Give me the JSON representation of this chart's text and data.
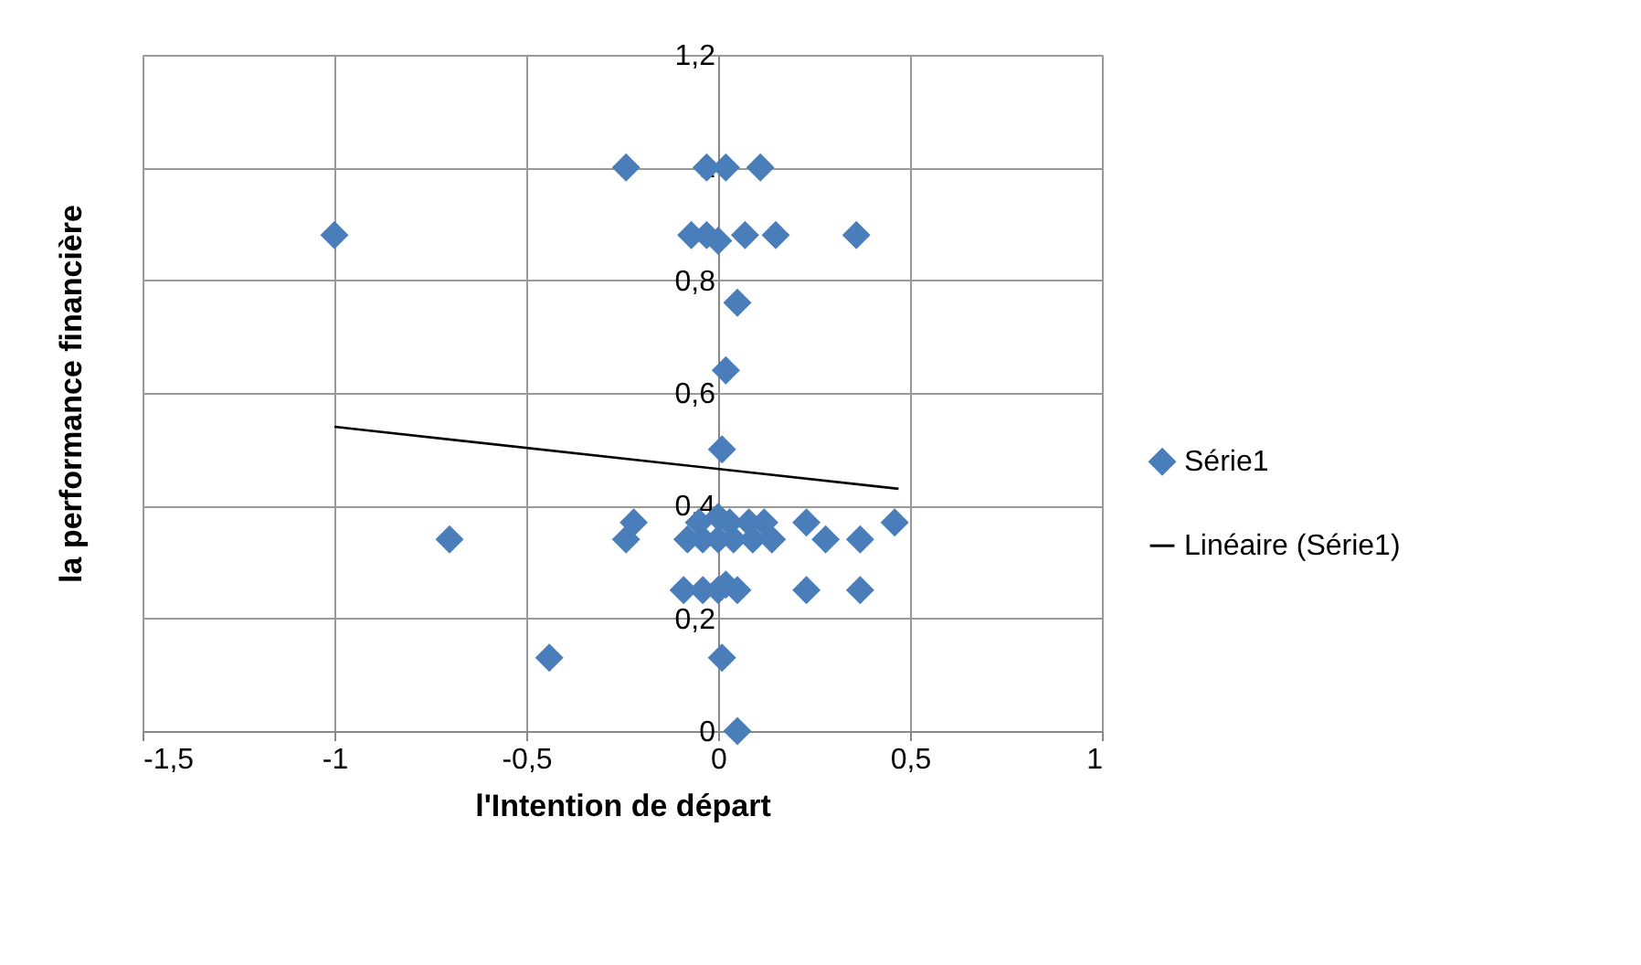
{
  "chart_data": {
    "type": "scatter",
    "xlabel": "l'Intention de départ",
    "ylabel": "la performance financière",
    "xlim": [
      -1.5,
      1
    ],
    "ylim": [
      0,
      1.2
    ],
    "xticks": [
      {
        "value": -1.5,
        "label": "-1,5"
      },
      -1,
      {
        "value": -0.5,
        "label": "-0,5"
      },
      0,
      {
        "value": 0.5,
        "label": "0,5"
      },
      1
    ],
    "yticks": [
      0,
      {
        "value": 0.2,
        "label": "0,2"
      },
      {
        "value": 0.4,
        "label": "0,4"
      },
      {
        "value": 0.6,
        "label": "0,6"
      },
      {
        "value": 0.8,
        "label": "0,8"
      },
      1,
      {
        "value": 1.2,
        "label": "1,2"
      }
    ],
    "grid": true,
    "legend": "right",
    "series": [
      {
        "name": "Série1",
        "type": "scatter",
        "marker": "diamond",
        "color": "#4a7ebb",
        "x": [
          -0.24,
          -0.03,
          0.02,
          0.11,
          -1.0,
          -0.07,
          -0.03,
          0.07,
          0.15,
          0.36,
          0.0,
          0.05,
          0.02,
          0.01,
          -0.22,
          -0.05,
          0.0,
          0.03,
          0.08,
          0.12,
          0.23,
          0.46,
          -0.7,
          -0.24,
          -0.08,
          -0.04,
          0.0,
          0.04,
          0.09,
          0.14,
          0.28,
          0.37,
          -0.09,
          -0.04,
          0.0,
          0.02,
          0.05,
          0.23,
          0.37,
          -0.44,
          0.01,
          0.05
        ],
        "values": [
          1.0,
          1.0,
          1.0,
          1.0,
          0.88,
          0.88,
          0.88,
          0.88,
          0.88,
          0.88,
          0.87,
          0.76,
          0.64,
          0.5,
          0.37,
          0.37,
          0.38,
          0.37,
          0.37,
          0.37,
          0.37,
          0.37,
          0.34,
          0.34,
          0.34,
          0.34,
          0.34,
          0.34,
          0.34,
          0.34,
          0.34,
          0.34,
          0.25,
          0.25,
          0.25,
          0.26,
          0.25,
          0.25,
          0.25,
          0.13,
          0.13,
          0.0
        ]
      },
      {
        "name": "Linéaire (Série1)",
        "type": "line",
        "marker": "none",
        "color": "#000000",
        "line_style": "solid",
        "x": [
          -1.0,
          0.47
        ],
        "values": [
          0.54,
          0.43
        ]
      }
    ]
  }
}
